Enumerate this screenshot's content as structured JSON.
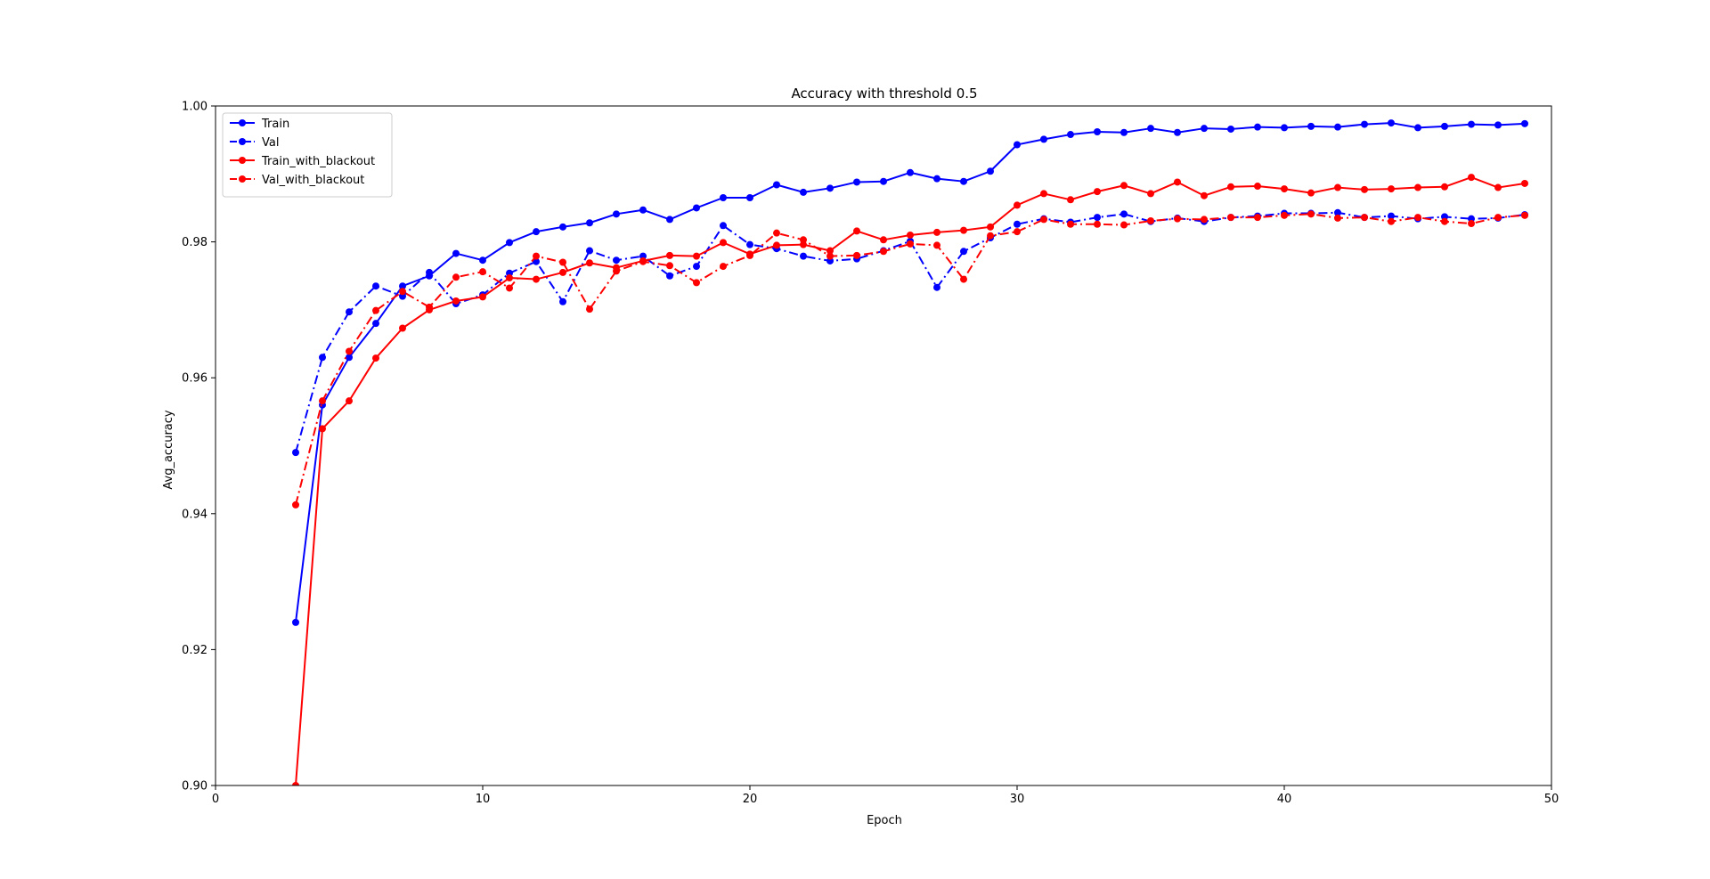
{
  "chart_data": {
    "type": "line",
    "title": "Accuracy with threshold 0.5",
    "xlabel": "Epoch",
    "ylabel": "Avg_accuracy",
    "xlim": [
      0,
      50
    ],
    "ylim": [
      0.9,
      1.0
    ],
    "xticks": [
      0,
      10,
      20,
      30,
      40,
      50
    ],
    "yticks": [
      0.9,
      0.92,
      0.94,
      0.96,
      0.98,
      1.0
    ],
    "xtick_labels": [
      "0",
      "10",
      "20",
      "30",
      "40",
      "50"
    ],
    "ytick_labels": [
      "0.90",
      "0.92",
      "0.94",
      "0.96",
      "0.98",
      "1.00"
    ],
    "grid": false,
    "legend_position": "upper-left",
    "x": [
      3,
      4,
      5,
      6,
      7,
      8,
      9,
      10,
      11,
      12,
      13,
      14,
      15,
      16,
      17,
      18,
      19,
      20,
      21,
      22,
      23,
      24,
      25,
      26,
      27,
      28,
      29,
      30,
      31,
      32,
      33,
      34,
      35,
      36,
      37,
      38,
      39,
      40,
      41,
      42,
      43,
      44,
      45,
      46,
      47,
      48,
      49
    ],
    "series": [
      {
        "name": "Train",
        "color": "#0000ff",
        "linestyle": "solid",
        "values": [
          0.924,
          0.956,
          0.963,
          0.968,
          0.9735,
          0.975,
          0.9783,
          0.9773,
          0.9799,
          0.9815,
          0.9822,
          0.9828,
          0.9841,
          0.9847,
          0.9833,
          0.985,
          0.9865,
          0.9865,
          0.9884,
          0.9873,
          0.9879,
          0.9888,
          0.9889,
          0.9902,
          0.9893,
          0.9889,
          0.9904,
          0.9943,
          0.9951,
          0.9958,
          0.9962,
          0.9961,
          0.9967,
          0.9961,
          0.9967,
          0.9966,
          0.9969,
          0.9968,
          0.997,
          0.9969,
          0.9973,
          0.9975,
          0.9968,
          0.997,
          0.9973,
          0.9972,
          0.9974
        ]
      },
      {
        "name": "Val",
        "color": "#0000ff",
        "linestyle": "dashdot",
        "values": [
          0.949,
          0.963,
          0.9697,
          0.9735,
          0.972,
          0.9755,
          0.9709,
          0.9722,
          0.9754,
          0.9771,
          0.9712,
          0.9787,
          0.9773,
          0.9779,
          0.975,
          0.9764,
          0.9824,
          0.9796,
          0.979,
          0.9779,
          0.9772,
          0.9775,
          0.9787,
          0.9801,
          0.9733,
          0.9786,
          0.9806,
          0.9826,
          0.9834,
          0.9829,
          0.9836,
          0.9841,
          0.983,
          0.9835,
          0.983,
          0.9836,
          0.9838,
          0.9842,
          0.9842,
          0.9843,
          0.9836,
          0.9838,
          0.9834,
          0.9837,
          0.9834,
          0.9835,
          0.984
        ]
      },
      {
        "name": "Train_with_blackout",
        "color": "#ff0000",
        "linestyle": "solid",
        "values": [
          0.9,
          0.9525,
          0.9566,
          0.9629,
          0.9673,
          0.97,
          0.9713,
          0.9719,
          0.9747,
          0.9745,
          0.9755,
          0.9769,
          0.9762,
          0.9772,
          0.978,
          0.9779,
          0.9799,
          0.9782,
          0.9795,
          0.9796,
          0.9787,
          0.9816,
          0.9803,
          0.981,
          0.9814,
          0.9817,
          0.9822,
          0.9854,
          0.9871,
          0.9862,
          0.9874,
          0.9883,
          0.9871,
          0.9888,
          0.9868,
          0.9881,
          0.9882,
          0.9878,
          0.9872,
          0.988,
          0.9877,
          0.9878,
          0.988,
          0.9881,
          0.9895,
          0.988,
          0.9886
        ]
      },
      {
        "name": "Val_with_blackout",
        "color": "#ff0000",
        "linestyle": "dashdot",
        "values": [
          0.9413,
          0.9566,
          0.9639,
          0.9699,
          0.9727,
          0.9704,
          0.9748,
          0.9756,
          0.9732,
          0.9779,
          0.977,
          0.9701,
          0.9757,
          0.9771,
          0.9765,
          0.974,
          0.9764,
          0.978,
          0.9813,
          0.9803,
          0.9779,
          0.978,
          0.9786,
          0.9797,
          0.9795,
          0.9745,
          0.9809,
          0.9815,
          0.9833,
          0.9826,
          0.9826,
          0.9825,
          0.9831,
          0.9834,
          0.9833,
          0.9836,
          0.9836,
          0.9839,
          0.9841,
          0.9835,
          0.9836,
          0.983,
          0.9836,
          0.983,
          0.9827,
          0.9836,
          0.9839
        ]
      }
    ]
  }
}
